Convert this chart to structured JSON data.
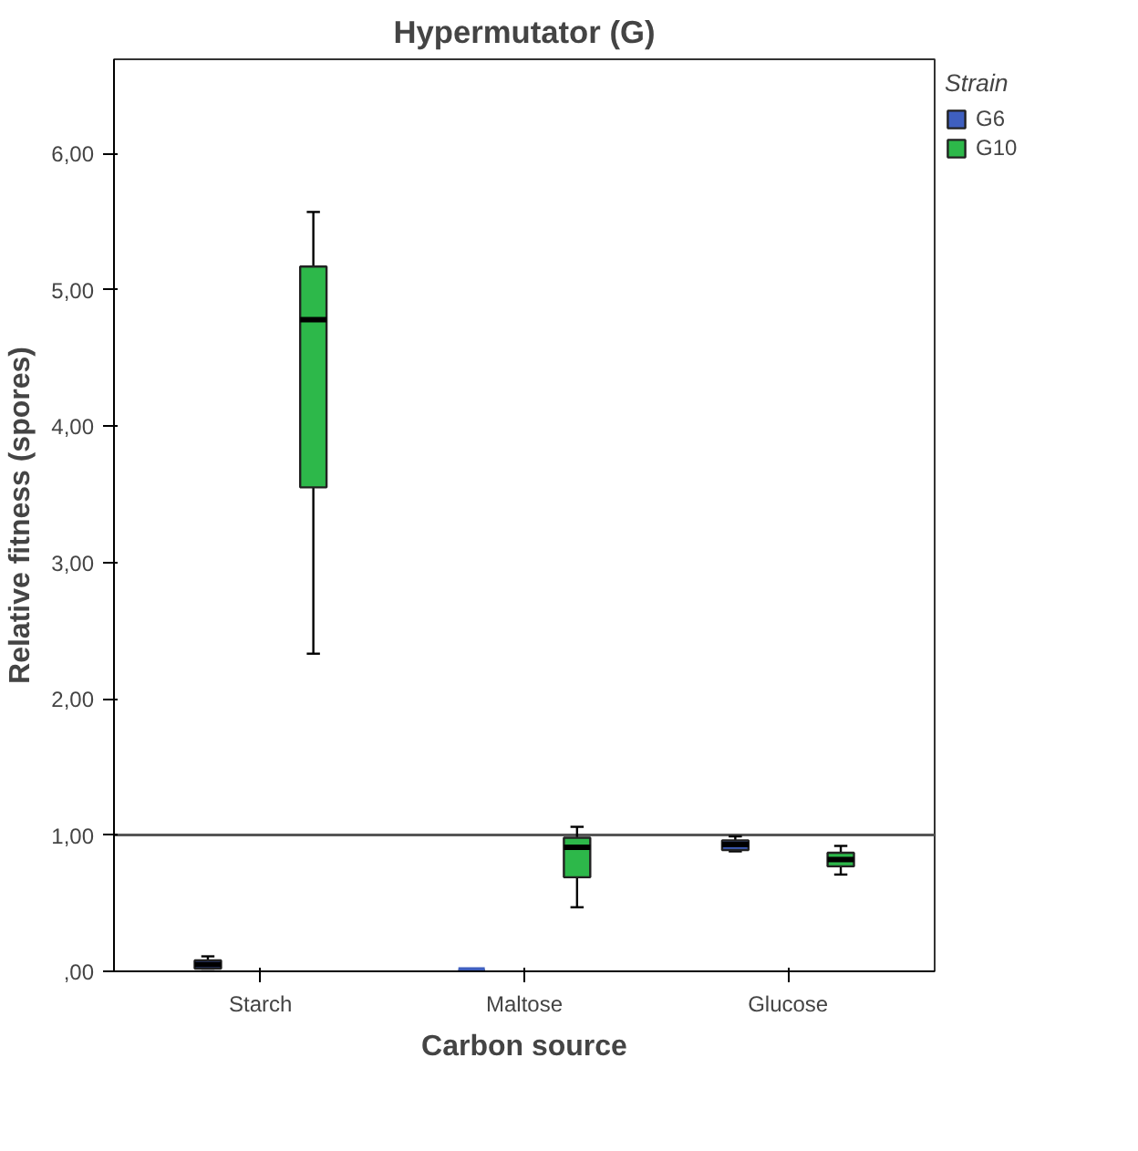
{
  "chart_data": {
    "type": "box",
    "title": "Hypermutator (G)",
    "xlabel": "Carbon source",
    "ylabel": "Relative fitness (spores)",
    "legend_title": "Strain",
    "legend": "right",
    "categories": [
      "Starch",
      "Maltose",
      "Glucose"
    ],
    "ylim": [
      0,
      6.69
    ],
    "yticks": [
      {
        "value": 0,
        "label": ",00"
      },
      {
        "value": 1,
        "label": "1,00"
      },
      {
        "value": 2,
        "label": "2,00"
      },
      {
        "value": 3,
        "label": "3,00"
      },
      {
        "value": 4,
        "label": "4,00"
      },
      {
        "value": 5,
        "label": "5,00"
      },
      {
        "value": 6,
        "label": "6,00"
      }
    ],
    "grid": false,
    "ref_lines": [
      {
        "axis": "y",
        "value": 1,
        "color": "#555555"
      }
    ],
    "series": [
      {
        "name": "G6",
        "color": "#3f5fbf",
        "boxes": [
          {
            "low": 0.02,
            "q1": 0.02,
            "median": 0.05,
            "q3": 0.08,
            "high": 0.11
          },
          {
            "low": 0.01,
            "q1": 0.01,
            "median": 0.01,
            "q3": 0.01,
            "high": 0.01
          },
          {
            "low": 0.88,
            "q1": 0.89,
            "median": 0.93,
            "q3": 0.96,
            "high": 0.99
          }
        ]
      },
      {
        "name": "G10",
        "color": "#2db84a",
        "boxes": [
          {
            "low": 2.33,
            "q1": 3.55,
            "median": 4.78,
            "q3": 5.17,
            "high": 5.57
          },
          {
            "low": 0.47,
            "q1": 0.69,
            "median": 0.91,
            "q3": 0.98,
            "high": 1.06
          },
          {
            "low": 0.71,
            "q1": 0.77,
            "median": 0.82,
            "q3": 0.87,
            "high": 0.92
          }
        ]
      }
    ]
  }
}
